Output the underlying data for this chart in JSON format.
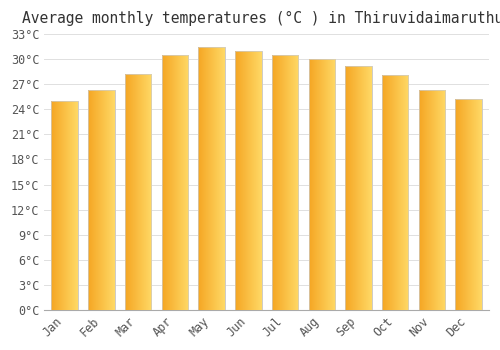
{
  "title": "Average monthly temperatures (°C ) in Thiruvidaimaruthur",
  "months": [
    "Jan",
    "Feb",
    "Mar",
    "Apr",
    "May",
    "Jun",
    "Jul",
    "Aug",
    "Sep",
    "Oct",
    "Nov",
    "Dec"
  ],
  "values": [
    25.0,
    26.3,
    28.2,
    30.5,
    31.5,
    31.0,
    30.5,
    30.0,
    29.2,
    28.1,
    26.3,
    25.2
  ],
  "bar_color_left": "#F5A623",
  "bar_color_right": "#FFD966",
  "bar_edge_color": "#cccccc",
  "ylim": [
    0,
    33
  ],
  "ytick_step": 3,
  "background_color": "#ffffff",
  "grid_color": "#e0e0e0",
  "title_fontsize": 10.5,
  "tick_fontsize": 8.5,
  "xlabel_color": "#555555",
  "ylabel_color": "#555555"
}
